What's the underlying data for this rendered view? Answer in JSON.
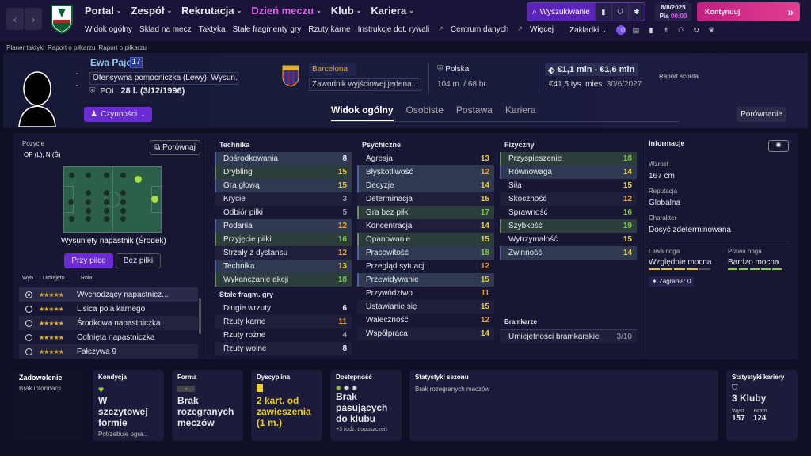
{
  "nav": {
    "back": "‹",
    "forward": "›",
    "main": [
      {
        "label": "Portal",
        "active": false
      },
      {
        "label": "Zespół",
        "active": false
      },
      {
        "label": "Rekrutacja",
        "active": false
      },
      {
        "label": "Dzień meczu",
        "active": true
      },
      {
        "label": "Klub",
        "active": false
      },
      {
        "label": "Kariera",
        "active": false
      }
    ],
    "sub": [
      "Widok ogólny",
      "Skład na mecz",
      "Taktyka",
      "Stałe fragmenty gry",
      "Rzuty karne",
      "Instrukcje dot. rywali",
      "Centrum danych",
      "Więcej"
    ],
    "bookmarks": "Zakładki",
    "badge": "10",
    "search": "Wyszukiwanie",
    "date": "8/8/2025",
    "day_time_day": "Pią",
    "day_time_time": "00:00",
    "continue": "Kontynuuj"
  },
  "breadcrumb": [
    "Planer taktyki",
    "Raport o piłkarzu",
    "Raport o piłkarzu"
  ],
  "player": {
    "name": "Ewa Pajor",
    "number": "17",
    "position": "Ofensywna pomocniczka (Lewy), Wysun...",
    "nationality": "POL",
    "age": "28 l. (3/12/1996)",
    "actions": "Czynności",
    "club": "Barcelona",
    "contract": "Zawodnik wyjściowej jedena...",
    "country": "Polska",
    "height_weight": "104 m. / 68 br.",
    "value": "€1,1 mln - €1,6 mln",
    "wage": "€41,5 tys. mies.",
    "contract_end": "30/6/2027",
    "scout": "Raport scouta"
  },
  "tabs": [
    "Widok ogólny",
    "Osobiste",
    "Postawa",
    "Kariera"
  ],
  "compare_top": "Porównanie",
  "positions": {
    "label": "Pozycje",
    "value": "OP (L), N (Ś)",
    "compare": "Porównaj",
    "role_name": "Wysunięty napastnik (Środek)",
    "btn_ball": "Przy piłce",
    "btn_noball": "Bez piłki",
    "col1": "Wyb...",
    "col2": "Umiejętn...",
    "col3": "Rola",
    "roles": [
      {
        "name": "Wychodzący napastnicz...",
        "stars": "★★★★★",
        "selected": true
      },
      {
        "name": "Lisica pola karnego",
        "stars": "★★★★★",
        "selected": false
      },
      {
        "name": "Środkowa napastniczka",
        "stars": "★★★★★",
        "selected": false
      },
      {
        "name": "Cofnięta napastniczka",
        "stars": "★★★★★",
        "selected": false
      },
      {
        "name": "Fałszywa 9",
        "stars": "★★★★★",
        "selected": false
      }
    ]
  },
  "technique": {
    "title": "Technika",
    "attrs": [
      {
        "name": "Dośrodkowania",
        "value": 8,
        "hl": "b"
      },
      {
        "name": "Drybling",
        "value": 15,
        "hl": "g"
      },
      {
        "name": "Gra głową",
        "value": 15,
        "hl": "b"
      },
      {
        "name": "Krycie",
        "value": 3,
        "hl": ""
      },
      {
        "name": "Odbiór piłki",
        "value": 5,
        "hl": ""
      },
      {
        "name": "Podania",
        "value": 12,
        "hl": "b"
      },
      {
        "name": "Przyjęcie piłki",
        "value": 16,
        "hl": "g"
      },
      {
        "name": "Strzały z dystansu",
        "value": 12,
        "hl": ""
      },
      {
        "name": "Technika",
        "value": 13,
        "hl": "b"
      },
      {
        "name": "Wykańczanie akcji",
        "value": 18,
        "hl": "g"
      }
    ]
  },
  "setpieces": {
    "title": "Stałe fragm. gry",
    "attrs": [
      {
        "name": "Długie wrzuty",
        "value": 6,
        "hl": ""
      },
      {
        "name": "Rzuty karne",
        "value": 11,
        "hl": ""
      },
      {
        "name": "Rzuty rożne",
        "value": 4,
        "hl": ""
      },
      {
        "name": "Rzuty wolne",
        "value": 8,
        "hl": ""
      }
    ]
  },
  "mental": {
    "title": "Psychiczne",
    "attrs": [
      {
        "name": "Agresja",
        "value": 13,
        "hl": ""
      },
      {
        "name": "Błyskotliwość",
        "value": 12,
        "hl": "b"
      },
      {
        "name": "Decyzje",
        "value": 14,
        "hl": "b"
      },
      {
        "name": "Determinacja",
        "value": 15,
        "hl": ""
      },
      {
        "name": "Gra bez piłki",
        "value": 17,
        "hl": "g"
      },
      {
        "name": "Koncentracja",
        "value": 14,
        "hl": ""
      },
      {
        "name": "Opanowanie",
        "value": 15,
        "hl": "g"
      },
      {
        "name": "Pracowitość",
        "value": 18,
        "hl": "b"
      },
      {
        "name": "Przegląd sytuacji",
        "value": 12,
        "hl": ""
      },
      {
        "name": "Przewidywanie",
        "value": 15,
        "hl": "b"
      },
      {
        "name": "Przywództwo",
        "value": 11,
        "hl": ""
      },
      {
        "name": "Ustawianie się",
        "value": 15,
        "hl": ""
      },
      {
        "name": "Waleczność",
        "value": 12,
        "hl": ""
      },
      {
        "name": "Współpraca",
        "value": 14,
        "hl": ""
      }
    ]
  },
  "physical": {
    "title": "Fizyczny",
    "attrs": [
      {
        "name": "Przyspieszenie",
        "value": 18,
        "hl": "g"
      },
      {
        "name": "Równowaga",
        "value": 14,
        "hl": "b"
      },
      {
        "name": "Siła",
        "value": 15,
        "hl": ""
      },
      {
        "name": "Skoczność",
        "value": 12,
        "hl": ""
      },
      {
        "name": "Sprawność",
        "value": 16,
        "hl": ""
      },
      {
        "name": "Szybkość",
        "value": 19,
        "hl": "g"
      },
      {
        "name": "Wytrzymałość",
        "value": 15,
        "hl": ""
      },
      {
        "name": "Zwinność",
        "value": 14,
        "hl": "b"
      }
    ]
  },
  "goalkeeping": {
    "title": "Bramkarze",
    "name": "Umiejętności bramkarskie",
    "value": "3/10"
  },
  "info": {
    "title": "Informacje",
    "height_label": "Wzrost",
    "height": "167 cm",
    "rep_label": "Reputacja",
    "rep": "Globalna",
    "char_label": "Charakter",
    "char": "Dosyć zdeterminowana",
    "left_label": "Lewa noga",
    "left": "Względnie mocna",
    "right_label": "Prawa noga",
    "right": "Bardzo mocna",
    "plays": "Zagrania: 0"
  },
  "cards": {
    "satisfaction_title": "Zadowolenie",
    "satisfaction": "Brak informacji",
    "condition_title": "Kondycja",
    "condition": "W szczytowej formie",
    "condition_sub": "Potrzebuje ogra...",
    "form_title": "Forma",
    "form_badge": "-",
    "form": "Brak rozegranych meczów",
    "discipline_title": "Dyscyplina",
    "discipline": "2 kart. od zawieszenia (1 m.)",
    "availability_title": "Dostępność",
    "availability": "Brak pasujących do klubu",
    "availability_sub": "+3 rodz. dopuszczeń",
    "season_title": "Statystyki sezonu",
    "season": "Brak rozegranych meczów",
    "career_title": "Statystyki kariery",
    "career": "3 Kluby",
    "apps_label": "Wyst.",
    "apps": "157",
    "goals_label": "Bram...",
    "goals": "124"
  },
  "colors": {
    "accent": "#6c2ad4",
    "highlight": "#e060e8",
    "continue": "#d03088"
  }
}
